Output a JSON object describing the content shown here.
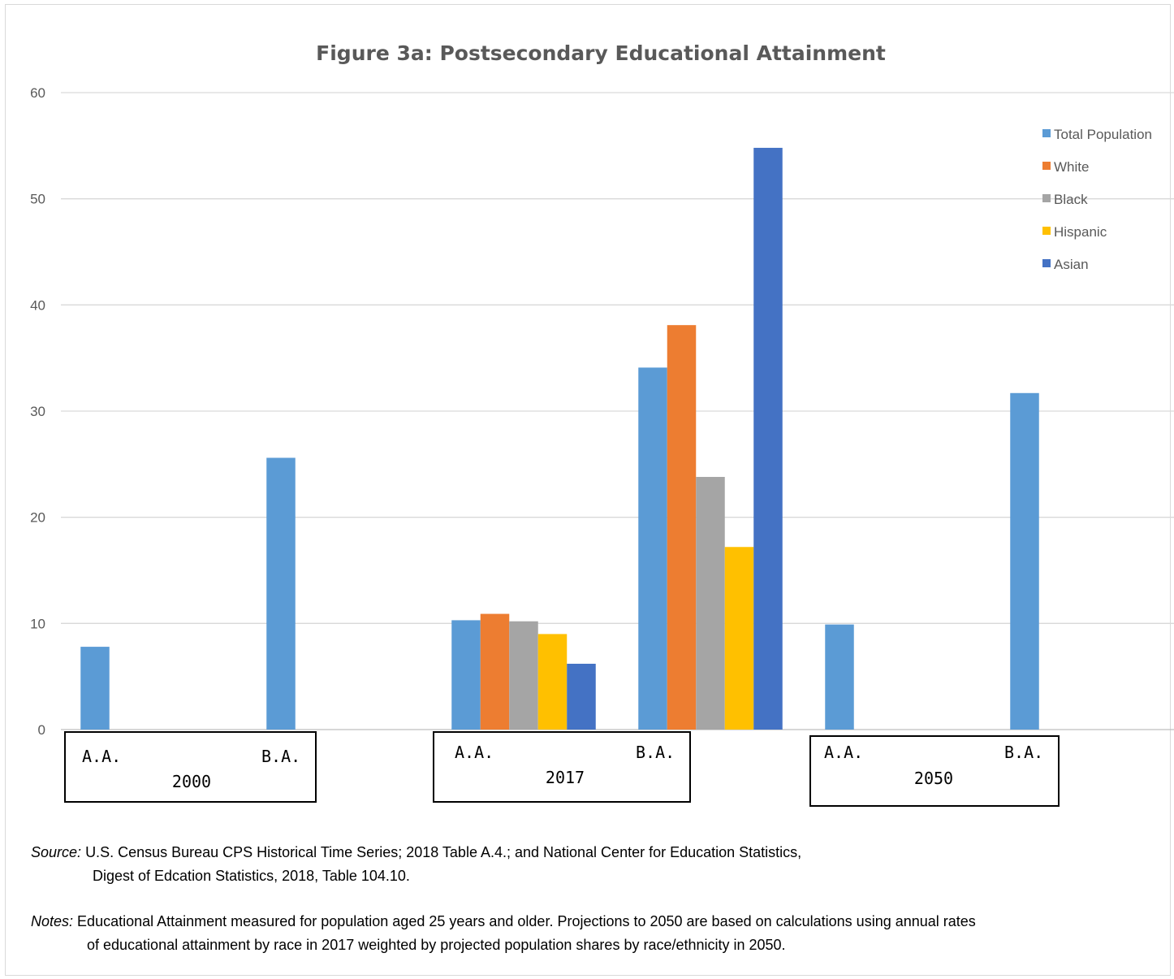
{
  "chart_data": {
    "type": "bar",
    "title": "Figure 3a: Postsecondary Educational Attainment",
    "ylim": [
      0,
      60
    ],
    "yticks": [
      "0",
      "10",
      "20",
      "30",
      "40",
      "50",
      "60"
    ],
    "grid": true,
    "legend_position": "right",
    "series": [
      {
        "name": "Total Population",
        "color": "#5b9bd5"
      },
      {
        "name": "White",
        "color": "#ed7d31"
      },
      {
        "name": "Black",
        "color": "#a5a5a5"
      },
      {
        "name": "Hispanic",
        "color": "#ffc000"
      },
      {
        "name": "Asian",
        "color": "#4472c4"
      }
    ],
    "groups": [
      {
        "year": "2000",
        "degrees": [
          {
            "label": "A.A.",
            "values": [
              7.8,
              null,
              null,
              null,
              null
            ]
          },
          {
            "label": "B.A.",
            "values": [
              25.6,
              null,
              null,
              null,
              null
            ]
          }
        ]
      },
      {
        "year": "2017",
        "degrees": [
          {
            "label": "A.A.",
            "values": [
              10.3,
              10.9,
              10.2,
              9.0,
              6.2
            ]
          },
          {
            "label": "B.A.",
            "values": [
              34.1,
              38.1,
              23.8,
              17.2,
              54.8
            ]
          }
        ]
      },
      {
        "year": "2050",
        "degrees": [
          {
            "label": "A.A.",
            "values": [
              9.9,
              null,
              null,
              null,
              null
            ]
          },
          {
            "label": "B.A.",
            "values": [
              31.7,
              null,
              null,
              null,
              null
            ]
          }
        ]
      }
    ]
  },
  "source": {
    "label": "Source:",
    "line1": "U.S. Census Bureau CPS Historical Time Series; 2018 Table A.4.; and National Center for Education Statistics,",
    "line2": "Digest of Edcation Statistics, 2018, Table 104.10."
  },
  "notes": {
    "label": "Notes:",
    "line1": "Educational Attainment measured for population aged 25 years and older. Projections to 2050 are based on calculations using annual rates",
    "line2": "of educational attainment by race in 2017 weighted by projected population shares by race/ethnicity in 2050."
  }
}
